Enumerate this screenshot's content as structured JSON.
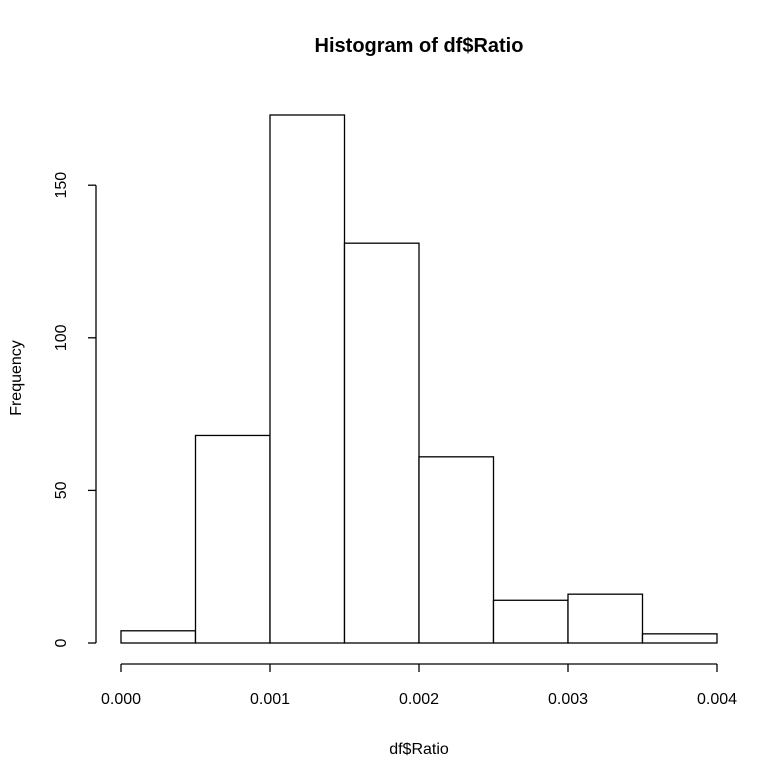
{
  "chart_data": {
    "type": "bar",
    "title": "Histogram of df$Ratio",
    "xlabel": "df$Ratio",
    "ylabel": "Frequency",
    "bins": [
      {
        "start": 0.0,
        "end": 0.0005,
        "count": 4
      },
      {
        "start": 0.0005,
        "end": 0.001,
        "count": 68
      },
      {
        "start": 0.001,
        "end": 0.0015,
        "count": 173
      },
      {
        "start": 0.0015,
        "end": 0.002,
        "count": 131
      },
      {
        "start": 0.002,
        "end": 0.0025,
        "count": 61
      },
      {
        "start": 0.0025,
        "end": 0.003,
        "count": 14
      },
      {
        "start": 0.003,
        "end": 0.0035,
        "count": 16
      },
      {
        "start": 0.0035,
        "end": 0.004,
        "count": 3
      }
    ],
    "xlim": [
      0,
      0.004
    ],
    "ylim": [
      0,
      173
    ],
    "xticks": [
      0.0,
      0.001,
      0.002,
      0.003,
      0.004
    ],
    "xtick_labels": [
      "0.000",
      "0.001",
      "0.002",
      "0.003",
      "0.004"
    ],
    "yticks": [
      0,
      50,
      100,
      150
    ],
    "ytick_labels": [
      "0",
      "50",
      "100",
      "150"
    ],
    "grid": false,
    "colors": {
      "bar_fill": "#ffffff",
      "bar_stroke": "#000000"
    }
  }
}
